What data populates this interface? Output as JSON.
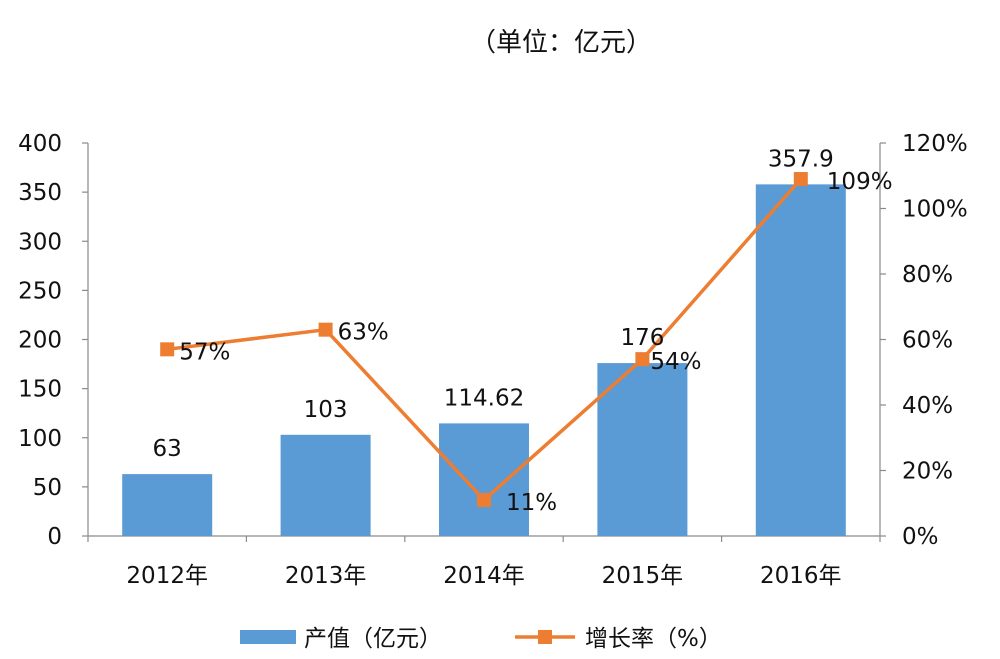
{
  "chart_data": {
    "type": "bar",
    "title": "（单位：亿元）",
    "categories": [
      "2012年",
      "2013年",
      "2014年",
      "2015年",
      "2016年"
    ],
    "series": [
      {
        "name": "产值（亿元）",
        "type": "bar",
        "axis": "left",
        "values": [
          63,
          103,
          114.62,
          176,
          357.9
        ],
        "labels": [
          "63",
          "103",
          "114.62",
          "176",
          "357.9"
        ],
        "color": "#5B9BD5"
      },
      {
        "name": "增长率（%）",
        "type": "line",
        "axis": "right",
        "values": [
          57,
          63,
          11,
          54,
          109
        ],
        "labels": [
          "57%",
          "63%",
          "11%",
          "54%",
          "109%"
        ],
        "color": "#ED7D31"
      }
    ],
    "y_left": {
      "min": 0,
      "max": 400,
      "ticks": [
        "0",
        "50",
        "100",
        "150",
        "200",
        "250",
        "300",
        "350",
        "400"
      ]
    },
    "y_right": {
      "min": 0,
      "max": 120,
      "ticks": [
        "0%",
        "20%",
        "40%",
        "60%",
        "80%",
        "100%",
        "120%"
      ]
    },
    "grid": false,
    "legend": "bottom"
  }
}
